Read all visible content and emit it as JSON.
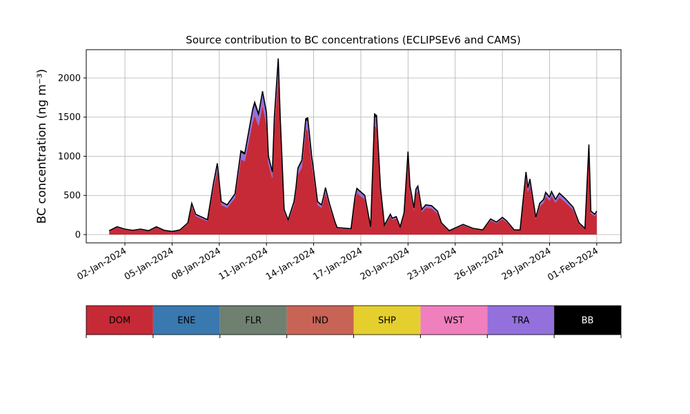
{
  "chart_data": {
    "type": "stacked_area",
    "title": "Source contribution to BC concentrations (ECLIPSEv6 and CAMS)",
    "y_label": "BC concentration (ng m⁻³)",
    "x": [
      "2024-01-01T00:00",
      "2024-01-01T12:00",
      "2024-01-02T00:00",
      "2024-01-02T12:00",
      "2024-01-03T00:00",
      "2024-01-03T12:00",
      "2024-01-04T00:00",
      "2024-01-04T12:00",
      "2024-01-05T00:00",
      "2024-01-05T12:00",
      "2024-01-06T00:00",
      "2024-01-06T06:00",
      "2024-01-06T12:00",
      "2024-01-07T06:00",
      "2024-01-07T15:00",
      "2024-01-07T21:00",
      "2024-01-08T03:00",
      "2024-01-08T12:00",
      "2024-01-09T00:00",
      "2024-01-09T09:00",
      "2024-01-09T15:00",
      "2024-01-10T03:00",
      "2024-01-10T06:00",
      "2024-01-10T12:00",
      "2024-01-10T18:00",
      "2024-01-11T00:00",
      "2024-01-11T03:00",
      "2024-01-11T09:00",
      "2024-01-11T12:00",
      "2024-01-11T18:00",
      "2024-01-11T21:00",
      "2024-01-12T03:00",
      "2024-01-12T09:00",
      "2024-01-12T18:00",
      "2024-01-12T21:00",
      "2024-01-13T00:00",
      "2024-01-13T06:00",
      "2024-01-13T12:00",
      "2024-01-13T15:00",
      "2024-01-13T21:00",
      "2024-01-14T00:00",
      "2024-01-14T06:00",
      "2024-01-14T12:00",
      "2024-01-14T15:00",
      "2024-01-14T18:00",
      "2024-01-15T00:00",
      "2024-01-15T09:00",
      "2024-01-15T12:00",
      "2024-01-16T09:00",
      "2024-01-16T15:00",
      "2024-01-16T18:00",
      "2024-01-17T06:00",
      "2024-01-17T15:00",
      "2024-01-17T21:00",
      "2024-01-18T00:00",
      "2024-01-18T06:00",
      "2024-01-18T12:00",
      "2024-01-18T21:00",
      "2024-01-19T00:00",
      "2024-01-19T06:00",
      "2024-01-19T12:00",
      "2024-01-19T18:00",
      "2024-01-20T00:00",
      "2024-01-20T03:00",
      "2024-01-20T09:00",
      "2024-01-20T12:00",
      "2024-01-20T15:00",
      "2024-01-20T21:00",
      "2024-01-21T03:00",
      "2024-01-21T12:00",
      "2024-01-21T21:00",
      "2024-01-22T03:00",
      "2024-01-22T15:00",
      "2024-01-23T12:00",
      "2024-01-24T03:00",
      "2024-01-24T18:00",
      "2024-01-25T06:00",
      "2024-01-25T15:00",
      "2024-01-26T00:00",
      "2024-01-26T06:00",
      "2024-01-26T18:00",
      "2024-01-27T03:00",
      "2024-01-27T12:00",
      "2024-01-27T15:00",
      "2024-01-27T18:00",
      "2024-01-28T03:00",
      "2024-01-28T09:00",
      "2024-01-28T15:00",
      "2024-01-28T18:00",
      "2024-01-29T00:00",
      "2024-01-29T03:00",
      "2024-01-29T09:00",
      "2024-01-29T15:00",
      "2024-01-30T00:00",
      "2024-01-30T12:00",
      "2024-01-30T21:00",
      "2024-01-31T06:00",
      "2024-01-31T12:00",
      "2024-01-31T15:00",
      "2024-01-31T21:00",
      "2024-02-01T00:00"
    ],
    "series": [
      {
        "name": "DOM",
        "color": "#c62a37",
        "values": [
          45,
          90,
          63,
          50,
          63,
          45,
          90,
          50,
          36,
          54,
          135,
          360,
          234,
          171,
          585,
          819,
          378,
          342,
          468,
          963,
          936,
          1440,
          1521,
          1386,
          1647,
          1404,
          900,
          720,
          1350,
          2025,
          1350,
          288,
          171,
          378,
          540,
          765,
          855,
          1332,
          1341,
          900,
          738,
          378,
          342,
          432,
          540,
          360,
          135,
          81,
          67,
          432,
          531,
          450,
          90,
          1386,
          1368,
          540,
          108,
          234,
          189,
          207,
          90,
          252,
          954,
          558,
          306,
          522,
          558,
          288,
          342,
          333,
          270,
          135,
          45,
          117,
          72,
          54,
          180,
          144,
          198,
          162,
          54,
          54,
          720,
          540,
          639,
          198,
          360,
          405,
          486,
          432,
          495,
          405,
          477,
          414,
          315,
          135,
          72,
          1035,
          270,
          234,
          270
        ]
      },
      {
        "name": "TRA",
        "color": "#9370db",
        "values": [
          4,
          8,
          6,
          4,
          6,
          4,
          8,
          4,
          3,
          5,
          12,
          32,
          21,
          15,
          52,
          73,
          34,
          30,
          42,
          86,
          83,
          128,
          135,
          123,
          146,
          125,
          80,
          64,
          120,
          180,
          120,
          26,
          15,
          34,
          48,
          68,
          76,
          118,
          119,
          80,
          66,
          34,
          30,
          38,
          48,
          32,
          12,
          7,
          6,
          38,
          47,
          40,
          8,
          123,
          122,
          48,
          10,
          21,
          17,
          18,
          8,
          22,
          85,
          50,
          27,
          46,
          50,
          26,
          30,
          30,
          24,
          12,
          4,
          10,
          6,
          5,
          16,
          13,
          18,
          14,
          5,
          5,
          64,
          48,
          57,
          18,
          32,
          36,
          43,
          38,
          44,
          36,
          42,
          37,
          28,
          12,
          6,
          92,
          24,
          21,
          24
        ]
      },
      {
        "name": "BB",
        "color": "#000000",
        "values": [
          1,
          2,
          1,
          1,
          1,
          1,
          2,
          1,
          1,
          1,
          3,
          8,
          5,
          4,
          13,
          18,
          8,
          8,
          10,
          21,
          21,
          32,
          34,
          31,
          37,
          31,
          20,
          16,
          30,
          45,
          30,
          6,
          4,
          8,
          12,
          17,
          19,
          30,
          30,
          20,
          16,
          8,
          8,
          10,
          12,
          8,
          3,
          2,
          2,
          10,
          12,
          10,
          2,
          31,
          30,
          12,
          2,
          5,
          4,
          5,
          2,
          6,
          21,
          12,
          7,
          12,
          12,
          6,
          8,
          7,
          6,
          3,
          1,
          3,
          2,
          1,
          4,
          3,
          4,
          4,
          1,
          1,
          16,
          12,
          14,
          4,
          8,
          9,
          11,
          10,
          11,
          9,
          11,
          9,
          7,
          3,
          2,
          23,
          6,
          5,
          6
        ]
      }
    ],
    "legend": [
      {
        "name": "DOM",
        "color": "#c62a37"
      },
      {
        "name": "ENE",
        "color": "#3a78b0"
      },
      {
        "name": "FLR",
        "color": "#6f8070"
      },
      {
        "name": "IND",
        "color": "#c86456"
      },
      {
        "name": "SHP",
        "color": "#e5cf2f"
      },
      {
        "name": "WST",
        "color": "#f07fbd"
      },
      {
        "name": "TRA",
        "color": "#9370db"
      },
      {
        "name": "BB",
        "color": "#000000"
      }
    ],
    "xlim": [
      "2023-12-30T13:00",
      "2024-02-02T13:00"
    ],
    "xticks": [
      {
        "value": "2024-01-02",
        "label": "02-Jan-2024"
      },
      {
        "value": "2024-01-05",
        "label": "05-Jan-2024"
      },
      {
        "value": "2024-01-08",
        "label": "08-Jan-2024"
      },
      {
        "value": "2024-01-11",
        "label": "11-Jan-2024"
      },
      {
        "value": "2024-01-14",
        "label": "14-Jan-2024"
      },
      {
        "value": "2024-01-17",
        "label": "17-Jan-2024"
      },
      {
        "value": "2024-01-20",
        "label": "20-Jan-2024"
      },
      {
        "value": "2024-01-23",
        "label": "23-Jan-2024"
      },
      {
        "value": "2024-01-26",
        "label": "26-Jan-2024"
      },
      {
        "value": "2024-01-29",
        "label": "29-Jan-2024"
      },
      {
        "value": "2024-02-01",
        "label": "01-Feb-2024"
      }
    ],
    "ylim": [
      -106,
      2361
    ],
    "yticks": [
      0,
      500,
      1000,
      1500,
      2000
    ],
    "grid": true
  }
}
